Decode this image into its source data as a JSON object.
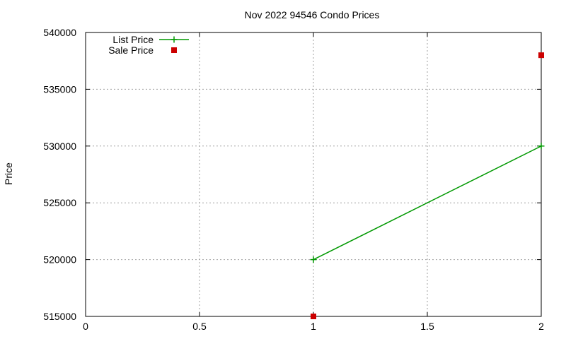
{
  "chart_data": {
    "type": "line",
    "title": "Nov 2022 94546 Condo Prices",
    "xlabel": "",
    "ylabel": "Price",
    "xlim": [
      0,
      2
    ],
    "ylim": [
      515000,
      540000
    ],
    "x_ticks": [
      0,
      0.5,
      1,
      1.5,
      2
    ],
    "x_tick_labels": [
      "0",
      "0.5",
      "1",
      "1.5",
      "2"
    ],
    "y_ticks": [
      515000,
      520000,
      525000,
      530000,
      535000,
      540000
    ],
    "y_tick_labels": [
      "515000",
      "520000",
      "525000",
      "530000",
      "535000",
      "540000"
    ],
    "grid": true,
    "legend_position": "top-left",
    "series": [
      {
        "name": "List Price",
        "style": "line-with-plus-markers",
        "color": "#009900",
        "points": [
          {
            "x": 1,
            "y": 520000
          },
          {
            "x": 2,
            "y": 530000
          }
        ]
      },
      {
        "name": "Sale Price",
        "style": "square-markers",
        "color": "#cc0000",
        "points": [
          {
            "x": 1,
            "y": 515000
          },
          {
            "x": 2,
            "y": 538000
          }
        ]
      }
    ]
  }
}
